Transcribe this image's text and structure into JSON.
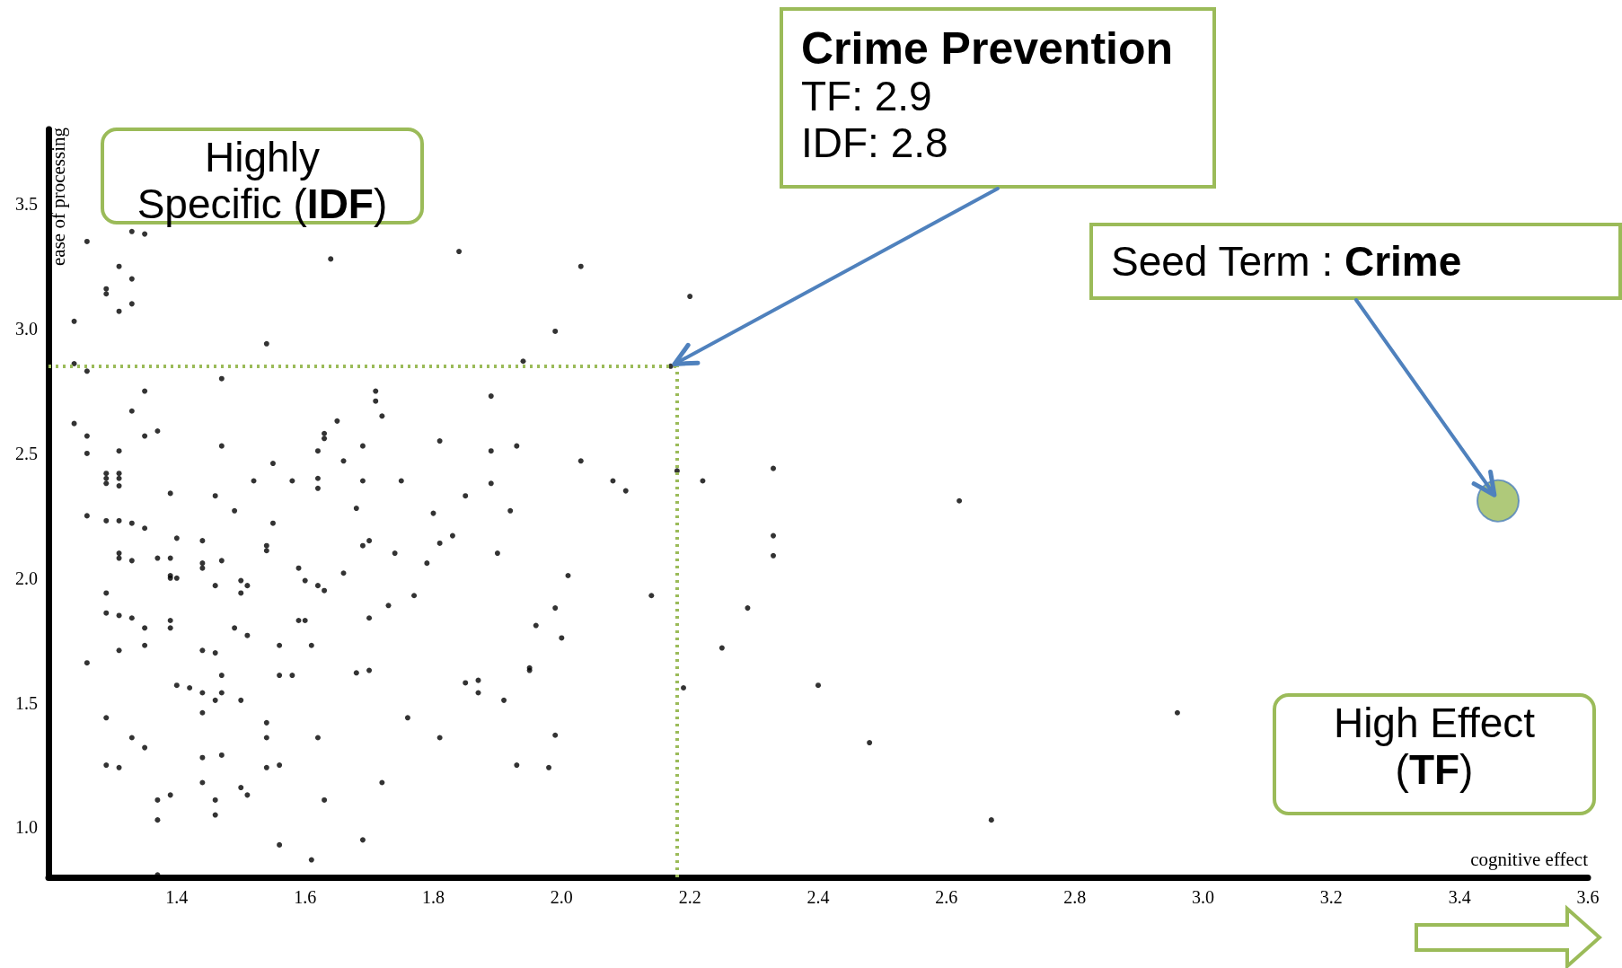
{
  "chart_data": {
    "type": "scatter",
    "xlabel": "cognitive effect",
    "ylabel": "ease of processing",
    "xlim": [
      1.2,
      3.6
    ],
    "ylim": [
      0.8,
      3.8
    ],
    "xticks": [
      1.4,
      1.6,
      1.8,
      {
        "value": 2,
        "label": "2.0"
      },
      2.2,
      2.4,
      2.6,
      2.8,
      {
        "value": 3,
        "label": "3.0"
      },
      3.2,
      3.4,
      3.6
    ],
    "yticks": [
      {
        "value": 1,
        "label": "1.0"
      },
      1.5,
      {
        "value": 2,
        "label": "2.0"
      },
      2.5,
      {
        "value": 3,
        "label": "3.0"
      },
      3.5
    ],
    "grid": false,
    "marker": "circle",
    "series": [
      {
        "color": "#000000",
        "x": [
          1.26,
          1.33,
          1.35,
          1.31,
          1.33,
          1.29,
          1.29,
          1.33,
          1.31,
          1.64,
          1.84,
          2.03,
          2.2,
          1.24,
          1.99,
          1.54,
          1.94,
          1.24,
          1.26,
          1.47,
          2.17,
          1.35,
          1.71,
          1.71,
          1.89,
          1.72,
          1.33,
          1.24,
          1.26,
          1.37,
          1.35,
          1.65,
          1.63,
          1.63,
          1.81,
          1.47,
          1.69,
          1.62,
          1.26,
          1.31,
          1.93,
          1.89,
          2.03,
          1.55,
          1.66,
          2.18,
          2.33,
          1.29,
          1.29,
          1.29,
          1.31,
          1.31,
          1.31,
          1.52,
          1.58,
          1.62,
          1.69,
          1.75,
          1.39,
          1.46,
          1.62,
          1.89,
          2.08,
          2.1,
          2.22,
          1.85,
          1.49,
          1.68,
          1.92,
          2.62,
          1.26,
          1.29,
          1.31,
          1.33,
          1.35,
          1.55,
          1.8,
          1.83,
          2.33,
          1.4,
          1.44,
          1.7,
          1.69,
          1.81,
          1.54,
          1.54,
          1.31,
          1.31,
          1.33,
          1.74,
          1.9,
          2.33,
          1.37,
          1.39,
          1.44,
          1.44,
          1.47,
          1.79,
          1.39,
          1.39,
          1.4,
          1.59,
          1.66,
          2.01,
          1.5,
          1.51,
          1.46,
          1.5,
          1.62,
          1.63,
          1.6,
          1.77,
          1.29,
          1.73,
          2.14,
          2.29,
          1.29,
          1.31,
          1.33,
          1.35,
          1.39,
          1.39,
          1.35,
          1.49,
          1.51,
          1.59,
          1.6,
          1.99,
          1.7,
          1.96,
          1.56,
          1.61,
          2.0,
          1.31,
          1.44,
          1.46,
          2.25,
          1.26,
          1.95,
          1.95,
          1.4,
          1.42,
          1.44,
          1.47,
          1.46,
          1.47,
          1.5,
          1.56,
          1.58,
          1.68,
          1.7,
          1.85,
          1.87,
          1.87,
          1.91,
          2.19,
          2.4,
          1.44,
          1.54,
          1.76,
          2.96,
          1.29,
          1.33,
          1.35,
          1.54,
          1.62,
          1.81,
          1.99,
          2.48,
          1.44,
          1.47,
          1.29,
          1.31,
          1.56,
          1.5,
          1.51,
          1.44,
          1.54,
          1.93,
          1.98,
          1.72,
          1.37,
          1.39,
          1.46,
          1.63,
          1.46,
          1.37,
          2.67,
          1.69,
          1.56,
          1.61,
          1.37
        ],
        "values": [
          3.35,
          3.39,
          3.38,
          3.25,
          3.2,
          3.16,
          3.14,
          3.1,
          3.07,
          3.28,
          3.31,
          3.25,
          3.13,
          3.03,
          2.99,
          2.94,
          2.87,
          2.86,
          2.83,
          2.8,
          2.85,
          2.75,
          2.75,
          2.71,
          2.73,
          2.65,
          2.67,
          2.62,
          2.57,
          2.59,
          2.57,
          2.63,
          2.58,
          2.56,
          2.55,
          2.53,
          2.53,
          2.51,
          2.5,
          2.51,
          2.53,
          2.51,
          2.47,
          2.46,
          2.47,
          2.43,
          2.44,
          2.42,
          2.4,
          2.38,
          2.42,
          2.4,
          2.37,
          2.39,
          2.39,
          2.4,
          2.39,
          2.39,
          2.34,
          2.33,
          2.36,
          2.38,
          2.39,
          2.35,
          2.39,
          2.33,
          2.27,
          2.28,
          2.27,
          2.31,
          2.25,
          2.23,
          2.23,
          2.22,
          2.2,
          2.22,
          2.26,
          2.17,
          2.17,
          2.16,
          2.15,
          2.15,
          2.13,
          2.14,
          2.13,
          2.11,
          2.1,
          2.08,
          2.07,
          2.1,
          2.1,
          2.09,
          2.08,
          2.08,
          2.06,
          2.04,
          2.07,
          2.06,
          2.01,
          2.0,
          2.0,
          2.04,
          2.02,
          2.01,
          1.99,
          1.97,
          1.97,
          1.94,
          1.97,
          1.95,
          1.99,
          1.93,
          1.94,
          1.89,
          1.93,
          1.88,
          1.86,
          1.85,
          1.84,
          1.8,
          1.83,
          1.8,
          1.73,
          1.8,
          1.77,
          1.83,
          1.83,
          1.88,
          1.84,
          1.81,
          1.73,
          1.73,
          1.76,
          1.71,
          1.71,
          1.7,
          1.72,
          1.66,
          1.64,
          1.63,
          1.57,
          1.56,
          1.54,
          1.61,
          1.51,
          1.54,
          1.51,
          1.61,
          1.61,
          1.62,
          1.63,
          1.58,
          1.59,
          1.54,
          1.51,
          1.56,
          1.57,
          1.46,
          1.42,
          1.44,
          1.46,
          1.44,
          1.36,
          1.32,
          1.36,
          1.36,
          1.36,
          1.37,
          1.34,
          1.28,
          1.29,
          1.25,
          1.24,
          1.25,
          1.16,
          1.13,
          1.18,
          1.24,
          1.25,
          1.24,
          1.18,
          1.11,
          1.13,
          1.11,
          1.11,
          1.05,
          1.03,
          1.03,
          0.95,
          0.93,
          0.87,
          0.81
        ]
      },
      {
        "color": "#9bbb59",
        "x": [
          3.46
        ],
        "values": [
          2.31
        ]
      }
    ],
    "ref_lines": [
      {
        "axis": "y",
        "value": 2.85,
        "color": "#9bbb59",
        "line_style": "dotted"
      },
      {
        "axis": "x",
        "value": 2.18,
        "color": "#9bbb59",
        "line_style": "dotted"
      }
    ],
    "annotations": [
      "Highly Specific (IDF)",
      {
        "text": "Crime Prevention\nTF: 2.9\nIDF: 2.8",
        "x": 2.17,
        "y": 2.85
      },
      {
        "text": "Seed Term : Crime",
        "x": 3.46,
        "y": 2.31
      },
      "High Effect (TF)"
    ]
  }
}
